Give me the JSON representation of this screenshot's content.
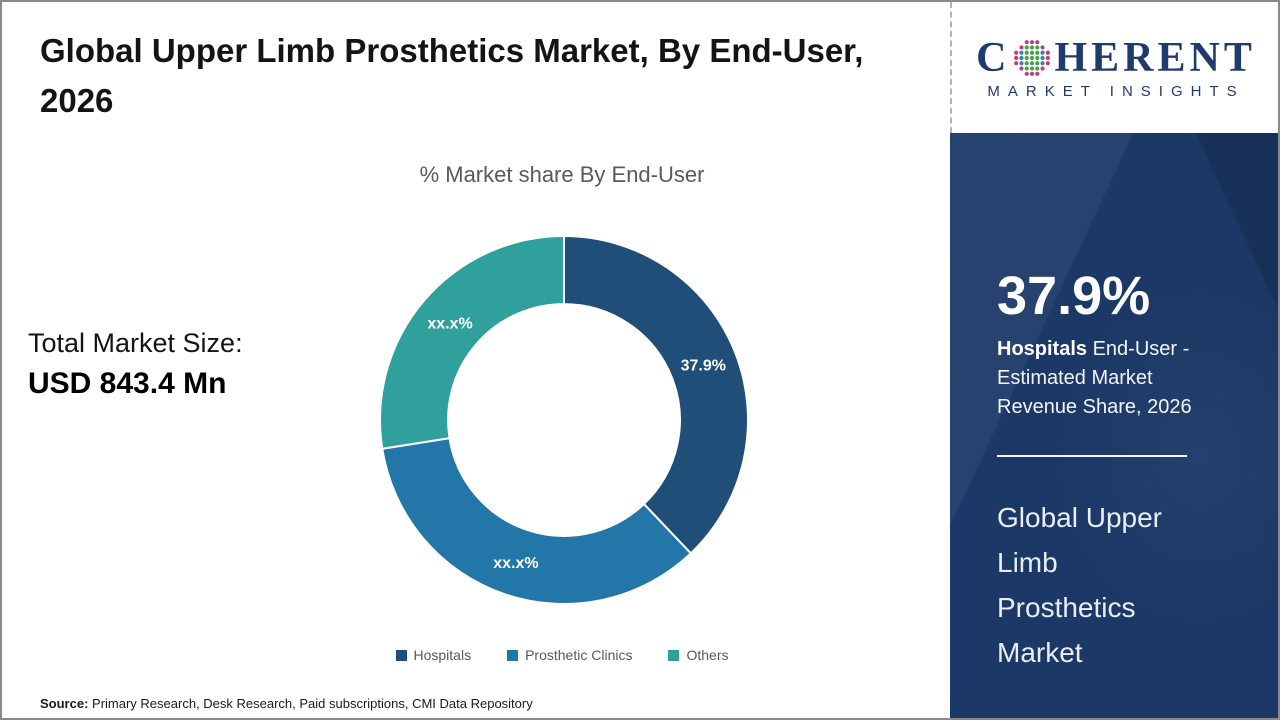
{
  "page": {
    "title": "Global Upper Limb Prosthetics Market, By End-User, 2026",
    "source_label": "Source:",
    "source_text": " Primary Research, Desk Research, Paid subscriptions, CMI Data Repository"
  },
  "branding": {
    "logo_line1_prefix": "C",
    "logo_line1_suffix": "HERENT",
    "logo_line2": "MARKET INSIGHTS",
    "logo_color": "#1E3A6E",
    "globe_colors": {
      "pink": "#C23B7A",
      "blue": "#3E7CB6",
      "green": "#47A247"
    }
  },
  "stats": {
    "total_label": "Total Market Size:",
    "total_value": "USD 843.4 Mn"
  },
  "sidebar": {
    "bg_color": "#1B3866",
    "stat_value": "37.9%",
    "stat_highlight": "Hospitals",
    "stat_rest": " End-User - Estimated Market Revenue Share, 2026",
    "market_name": "Global Upper Limb Prosthetics Market"
  },
  "chart_data": {
    "type": "pie",
    "subtype": "donut",
    "title": "% Market share By End-User",
    "categories": [
      "Hospitals",
      "Prosthetic Clinics",
      "Others"
    ],
    "values": [
      37.9,
      34.6,
      27.5
    ],
    "labels": [
      "37.9%",
      "xx.x%",
      "xx.x%"
    ],
    "colors": [
      "#1F4E79",
      "#2277A8",
      "#2FA09B"
    ],
    "start_angle_deg": 0,
    "direction": "clockwise",
    "inner_radius_ratio": 0.63,
    "legend_position": "bottom",
    "slice_gap_color": "#ffffff"
  }
}
